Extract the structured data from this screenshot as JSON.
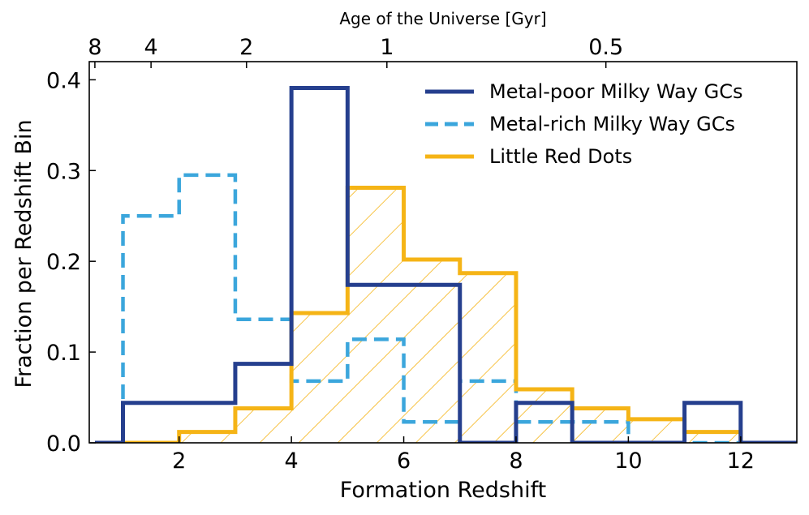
{
  "chart_data": {
    "type": "histogram-step",
    "xlabel": "Formation Redshift",
    "ylabel": "Fraction per Redshift Bin",
    "top_axis_label": "Age of the Universe [Gyr]",
    "xlim": [
      0.4,
      13.0
    ],
    "ylim": [
      0.0,
      0.42
    ],
    "x_ticks": [
      2,
      4,
      6,
      8,
      10,
      12
    ],
    "y_ticks": [
      0.0,
      0.1,
      0.2,
      0.3,
      0.4
    ],
    "x_tick_labels": [
      "2",
      "4",
      "6",
      "8",
      "10",
      "12"
    ],
    "y_tick_labels": [
      "0.0",
      "0.1",
      "0.2",
      "0.3",
      "0.4"
    ],
    "top_ticks": [
      {
        "label": "8",
        "z": 0.5
      },
      {
        "label": "4",
        "z": 1.5
      },
      {
        "label": "2",
        "z": 3.2
      },
      {
        "label": "1",
        "z": 5.7
      },
      {
        "label": "0.5",
        "z": 9.6
      }
    ],
    "legend_position": "top-right",
    "series": [
      {
        "name": "Metal-poor Milky Way GCs",
        "color": "#253f8e",
        "style": "solid",
        "bins": [
          0.5,
          1,
          2,
          3,
          4,
          5,
          6,
          7,
          8,
          9,
          10,
          11,
          12,
          13
        ],
        "values": [
          0.0,
          0.044,
          0.044,
          0.087,
          0.391,
          0.174,
          0.174,
          0.0,
          0.044,
          0.0,
          0.0,
          0.044,
          0.0
        ]
      },
      {
        "name": "Metal-rich Milky Way GCs",
        "color": "#3ba6dc",
        "style": "dashed",
        "bins": [
          1,
          2,
          3,
          4,
          5,
          6,
          7,
          8,
          9,
          10,
          11,
          12
        ],
        "values": [
          0.25,
          0.295,
          0.136,
          0.068,
          0.114,
          0.023,
          0.068,
          0.023,
          0.023,
          0.0,
          0.0
        ]
      },
      {
        "name": "Little Red Dots",
        "color": "#f5b416",
        "style": "solid-hatched",
        "bins": [
          1,
          2,
          3,
          4,
          5,
          6,
          7,
          8,
          9,
          10,
          11,
          12
        ],
        "values": [
          0.0,
          0.012,
          0.038,
          0.143,
          0.281,
          0.202,
          0.187,
          0.059,
          0.038,
          0.026,
          0.012
        ]
      }
    ]
  }
}
